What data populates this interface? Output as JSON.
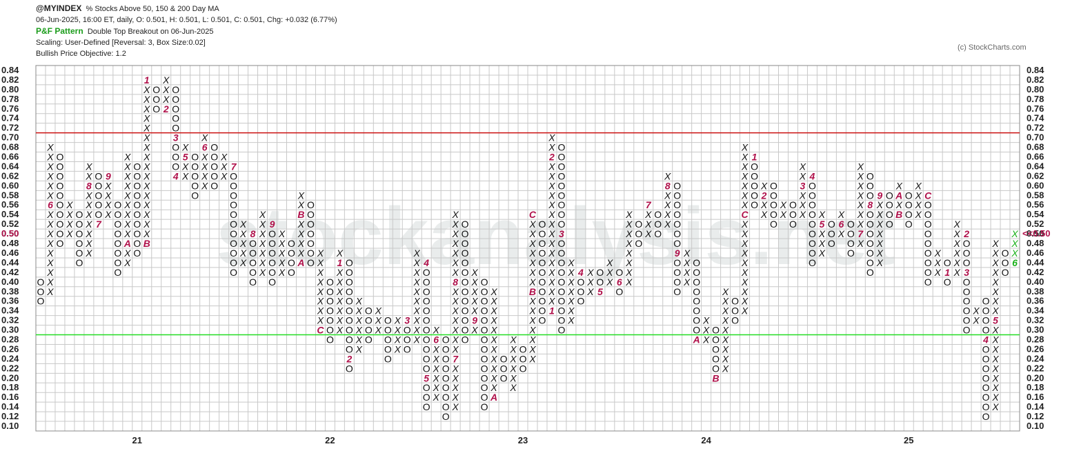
{
  "header": {
    "symbol": "@MYINDEX",
    "description": "% Stocks Above 50, 150 & 200 Day MA",
    "quote": "06-Jun-2025, 16:00 ET, daily, O: 0.501, H: 0.501, L: 0.501, C: 0.501, Chg: +0.032 (6.77%)",
    "pattern_label": "P&F Pattern",
    "pattern_text": "Double Top Breakout on 06-Jun-2025",
    "scaling": "Scaling: User-Defined [Reversal: 3, Box Size:0.02]",
    "objective": "Bullish Price Objective: 1.2"
  },
  "copyright": "(c) StockCharts.com",
  "watermark": "stockanalysis.net",
  "colors": {
    "x_mark": "#111111",
    "o_mark": "#111111",
    "month_mark": "#b0104a",
    "current_mark": "#18b018",
    "resistance": "#cc1111",
    "support": "#22dd22",
    "grid": "#c8c8c8"
  },
  "chart_data": {
    "type": "point-and-figure",
    "box_size": 0.02,
    "reversal": 3,
    "ylim": [
      0.1,
      0.84
    ],
    "y_ticks": [
      "0.84",
      "0.82",
      "0.80",
      "0.78",
      "0.76",
      "0.74",
      "0.72",
      "0.70",
      "0.68",
      "0.66",
      "0.64",
      "0.62",
      "0.60",
      "0.58",
      "0.56",
      "0.54",
      "0.52",
      "0.50",
      "0.48",
      "0.46",
      "0.44",
      "0.42",
      "0.40",
      "0.38",
      "0.36",
      "0.34",
      "0.32",
      "0.30",
      "0.28",
      "0.26",
      "0.24",
      "0.22",
      "0.20",
      "0.18",
      "0.16",
      "0.14",
      "0.12",
      "0.10"
    ],
    "x_year_labels": [
      {
        "label": "21",
        "col": 10
      },
      {
        "label": "22",
        "col": 30
      },
      {
        "label": "23",
        "col": 50
      },
      {
        "label": "24",
        "col": 69
      },
      {
        "label": "25",
        "col": 90
      }
    ],
    "current_value": "0.50",
    "current_marker": "<<0.50",
    "resistance_level": 0.7,
    "support_level": 0.3,
    "columns": [
      {
        "t": "O",
        "hi": 0.4,
        "lo": 0.36
      },
      {
        "t": "X",
        "hi": 0.68,
        "lo": 0.38,
        "m": {
          "0.56": "6"
        }
      },
      {
        "t": "O",
        "hi": 0.66,
        "lo": 0.48
      },
      {
        "t": "X",
        "hi": 0.56,
        "lo": 0.5
      },
      {
        "t": "O",
        "hi": 0.54,
        "lo": 0.44
      },
      {
        "t": "X",
        "hi": 0.64,
        "lo": 0.46,
        "m": {
          "0.60": "8"
        }
      },
      {
        "t": "O",
        "hi": 0.62,
        "lo": 0.52,
        "m": {
          "0.52": "7"
        }
      },
      {
        "t": "X",
        "hi": 0.62,
        "lo": 0.54,
        "m": {
          "0.62": "9"
        }
      },
      {
        "t": "O",
        "hi": 0.56,
        "lo": 0.42
      },
      {
        "t": "X",
        "hi": 0.66,
        "lo": 0.44,
        "m": {
          "0.48": "A"
        }
      },
      {
        "t": "O",
        "hi": 0.64,
        "lo": 0.46
      },
      {
        "t": "X",
        "hi": 0.82,
        "lo": 0.48,
        "m": {
          "0.48": "B",
          "0.82": "1"
        }
      },
      {
        "t": "O",
        "hi": 0.8,
        "lo": 0.76
      },
      {
        "t": "X",
        "hi": 0.82,
        "lo": 0.76,
        "m": {
          "0.76": "2"
        }
      },
      {
        "t": "O",
        "hi": 0.8,
        "lo": 0.62,
        "m": {
          "0.70": "3",
          "0.62": "4"
        }
      },
      {
        "t": "X",
        "hi": 0.68,
        "lo": 0.62,
        "m": {
          "0.66": "5"
        }
      },
      {
        "t": "O",
        "hi": 0.66,
        "lo": 0.58
      },
      {
        "t": "X",
        "hi": 0.7,
        "lo": 0.6,
        "m": {
          "0.68": "6"
        }
      },
      {
        "t": "O",
        "hi": 0.68,
        "lo": 0.6
      },
      {
        "t": "X",
        "hi": 0.66,
        "lo": 0.62
      },
      {
        "t": "O",
        "hi": 0.64,
        "lo": 0.42,
        "m": {
          "0.64": "7"
        }
      },
      {
        "t": "X",
        "hi": 0.52,
        "lo": 0.44
      },
      {
        "t": "O",
        "hi": 0.5,
        "lo": 0.4,
        "m": {
          "0.50": "8"
        }
      },
      {
        "t": "X",
        "hi": 0.54,
        "lo": 0.42
      },
      {
        "t": "O",
        "hi": 0.52,
        "lo": 0.4,
        "m": {
          "0.52": "9"
        }
      },
      {
        "t": "X",
        "hi": 0.5,
        "lo": 0.42
      },
      {
        "t": "O",
        "hi": 0.48,
        "lo": 0.42
      },
      {
        "t": "X",
        "hi": 0.58,
        "lo": 0.44,
        "m": {
          "0.44": "A",
          "0.54": "B"
        }
      },
      {
        "t": "O",
        "hi": 0.56,
        "lo": 0.44
      },
      {
        "t": "X",
        "hi": 0.46,
        "lo": 0.3,
        "m": {
          "0.30": "C"
        }
      },
      {
        "t": "O",
        "hi": 0.4,
        "lo": 0.28
      },
      {
        "t": "X",
        "hi": 0.46,
        "lo": 0.3,
        "m": {
          "0.44": "1"
        }
      },
      {
        "t": "O",
        "hi": 0.44,
        "lo": 0.22,
        "m": {
          "0.24": "2"
        }
      },
      {
        "t": "X",
        "hi": 0.36,
        "lo": 0.26
      },
      {
        "t": "O",
        "hi": 0.34,
        "lo": 0.28
      },
      {
        "t": "X",
        "hi": 0.34,
        "lo": 0.3
      },
      {
        "t": "O",
        "hi": 0.32,
        "lo": 0.24
      },
      {
        "t": "X",
        "hi": 0.32,
        "lo": 0.26
      },
      {
        "t": "O",
        "hi": 0.32,
        "lo": 0.26,
        "m": {
          "0.32": "3"
        }
      },
      {
        "t": "X",
        "hi": 0.46,
        "lo": 0.28
      },
      {
        "t": "O",
        "hi": 0.44,
        "lo": 0.14,
        "m": {
          "0.44": "4",
          "0.20": "5"
        }
      },
      {
        "t": "X",
        "hi": 0.3,
        "lo": 0.16,
        "m": {
          "0.28": "6"
        }
      },
      {
        "t": "O",
        "hi": 0.28,
        "lo": 0.12
      },
      {
        "t": "X",
        "hi": 0.54,
        "lo": 0.14,
        "m": {
          "0.24": "7",
          "0.40": "8"
        }
      },
      {
        "t": "O",
        "hi": 0.52,
        "lo": 0.28
      },
      {
        "t": "X",
        "hi": 0.42,
        "lo": 0.3,
        "m": {
          "0.32": "9"
        }
      },
      {
        "t": "O",
        "hi": 0.4,
        "lo": 0.14
      },
      {
        "t": "X",
        "hi": 0.38,
        "lo": 0.16,
        "m": {
          "0.16": "A"
        }
      },
      {
        "t": "O",
        "hi": 0.24,
        "lo": 0.2
      },
      {
        "t": "X",
        "hi": 0.28,
        "lo": 0.18
      },
      {
        "t": "O",
        "hi": 0.26,
        "lo": 0.22
      },
      {
        "t": "X",
        "hi": 0.54,
        "lo": 0.24,
        "m": {
          "0.38": "B",
          "0.54": "C"
        }
      },
      {
        "t": "O",
        "hi": 0.52,
        "lo": 0.32
      },
      {
        "t": "X",
        "hi": 0.7,
        "lo": 0.34,
        "m": {
          "0.34": "1",
          "0.66": "2"
        }
      },
      {
        "t": "O",
        "hi": 0.68,
        "lo": 0.3,
        "m": {
          "0.50": "3"
        }
      },
      {
        "t": "X",
        "hi": 0.44,
        "lo": 0.32
      },
      {
        "t": "O",
        "hi": 0.42,
        "lo": 0.36,
        "m": {
          "0.42": "4"
        }
      },
      {
        "t": "X",
        "hi": 0.42,
        "lo": 0.38
      },
      {
        "t": "O",
        "hi": 0.42,
        "lo": 0.38,
        "m": {
          "0.38": "5"
        }
      },
      {
        "t": "X",
        "hi": 0.44,
        "lo": 0.4
      },
      {
        "t": "O",
        "hi": 0.42,
        "lo": 0.38,
        "m": {
          "0.40": "6"
        }
      },
      {
        "t": "X",
        "hi": 0.54,
        "lo": 0.4
      },
      {
        "t": "O",
        "hi": 0.52,
        "lo": 0.48
      },
      {
        "t": "X",
        "hi": 0.56,
        "lo": 0.5,
        "m": {
          "0.56": "7"
        }
      },
      {
        "t": "O",
        "hi": 0.54,
        "lo": 0.5
      },
      {
        "t": "X",
        "hi": 0.62,
        "lo": 0.52,
        "m": {
          "0.60": "8"
        }
      },
      {
        "t": "O",
        "hi": 0.6,
        "lo": 0.38,
        "m": {
          "0.46": "9"
        }
      },
      {
        "t": "X",
        "hi": 0.46,
        "lo": 0.4
      },
      {
        "t": "O",
        "hi": 0.44,
        "lo": 0.28,
        "m": {
          "0.28": "A"
        }
      },
      {
        "t": "X",
        "hi": 0.32,
        "lo": 0.28
      },
      {
        "t": "O",
        "hi": 0.3,
        "lo": 0.2,
        "m": {
          "0.20": "B"
        }
      },
      {
        "t": "X",
        "hi": 0.38,
        "lo": 0.22
      },
      {
        "t": "O",
        "hi": 0.36,
        "lo": 0.32
      },
      {
        "t": "X",
        "hi": 0.68,
        "lo": 0.34,
        "m": {
          "0.54": "C"
        }
      },
      {
        "t": "O",
        "hi": 0.66,
        "lo": 0.56,
        "m": {
          "0.66": "1"
        }
      },
      {
        "t": "X",
        "hi": 0.6,
        "lo": 0.54,
        "m": {
          "0.58": "2"
        }
      },
      {
        "t": "O",
        "hi": 0.6,
        "lo": 0.52
      },
      {
        "t": "X",
        "hi": 0.56,
        "lo": 0.54
      },
      {
        "t": "O",
        "hi": 0.56,
        "lo": 0.52
      },
      {
        "t": "X",
        "hi": 0.64,
        "lo": 0.54,
        "m": {
          "0.60": "3"
        }
      },
      {
        "t": "O",
        "hi": 0.62,
        "lo": 0.44,
        "m": {
          "0.62": "4"
        }
      },
      {
        "t": "X",
        "hi": 0.54,
        "lo": 0.46,
        "m": {
          "0.52": "5"
        }
      },
      {
        "t": "O",
        "hi": 0.52,
        "lo": 0.48
      },
      {
        "t": "X",
        "hi": 0.54,
        "lo": 0.5,
        "m": {
          "0.52": "6"
        }
      },
      {
        "t": "O",
        "hi": 0.52,
        "lo": 0.46
      },
      {
        "t": "X",
        "hi": 0.64,
        "lo": 0.48,
        "m": {
          "0.50": "7"
        }
      },
      {
        "t": "O",
        "hi": 0.62,
        "lo": 0.42,
        "m": {
          "0.56": "8"
        }
      },
      {
        "t": "X",
        "hi": 0.58,
        "lo": 0.44,
        "m": {
          "0.58": "9"
        }
      },
      {
        "t": "O",
        "hi": 0.58,
        "lo": 0.52
      },
      {
        "t": "X",
        "hi": 0.6,
        "lo": 0.54,
        "m": {
          "0.58": "A",
          "0.54": "B"
        }
      },
      {
        "t": "O",
        "hi": 0.58,
        "lo": 0.52
      },
      {
        "t": "X",
        "hi": 0.6,
        "lo": 0.54
      },
      {
        "t": "O",
        "hi": 0.58,
        "lo": 0.4,
        "m": {
          "0.58": "C"
        }
      },
      {
        "t": "X",
        "hi": 0.46,
        "lo": 0.42
      },
      {
        "t": "O",
        "hi": 0.44,
        "lo": 0.4,
        "m": {
          "0.42": "1"
        }
      },
      {
        "t": "X",
        "hi": 0.52,
        "lo": 0.42
      },
      {
        "t": "O",
        "hi": 0.5,
        "lo": 0.3,
        "m": {
          "0.50": "2",
          "0.42": "3"
        }
      },
      {
        "t": "X",
        "hi": 0.34,
        "lo": 0.32
      },
      {
        "t": "O",
        "hi": 0.36,
        "lo": 0.12,
        "m": {
          "0.28": "4"
        }
      },
      {
        "t": "X",
        "hi": 0.48,
        "lo": 0.14,
        "m": {
          "0.32": "5"
        }
      },
      {
        "t": "O",
        "hi": 0.46,
        "lo": 0.42
      },
      {
        "t": "X",
        "hi": 0.5,
        "lo": 0.44,
        "m": {
          "0.44": "6"
        },
        "current": true
      }
    ]
  }
}
